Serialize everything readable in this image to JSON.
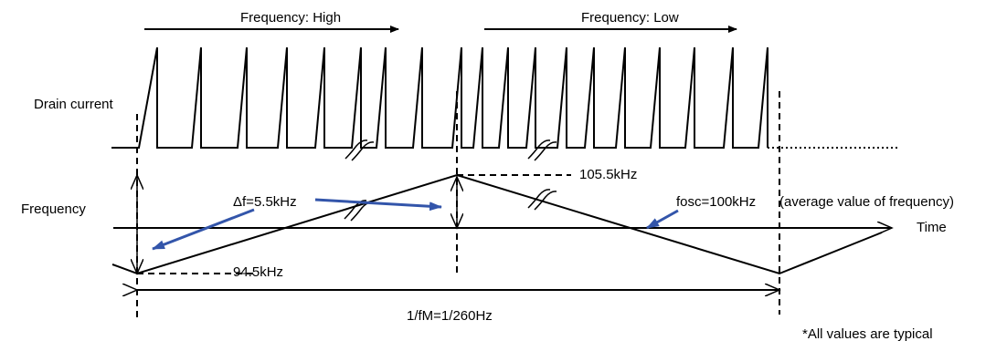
{
  "labels": {
    "freq_high": "Frequency: High",
    "freq_low": "Frequency: Low",
    "drain_current": "Drain current",
    "frequency": "Frequency",
    "time": "Time",
    "f_max": "105.5kHz",
    "f_min": "94.5kHz",
    "delta_f": "Δf=5.5kHz",
    "fosc": "fosc=100kHz",
    "average_note": "(average value of frequency)",
    "modulation_period": "1/fM=1/260Hz",
    "footnote": "*All values are typical"
  },
  "colors": {
    "line": "#000000",
    "callout_arrow": "#3355aa"
  }
}
